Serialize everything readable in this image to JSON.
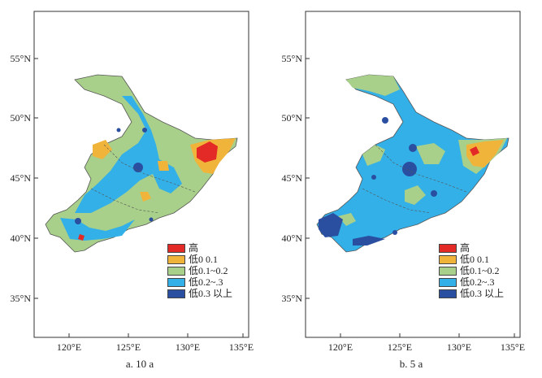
{
  "lat_labels": [
    "55°N",
    "50°N",
    "45°N",
    "40°N",
    "35°N"
  ],
  "lon_labels": [
    "120°E",
    "125°E",
    "130°E",
    "135°E"
  ],
  "legend": [
    {
      "label": "高",
      "color": "#e32a26"
    },
    {
      "label": "低0  0.1",
      "color": "#f0b43a"
    },
    {
      "label": "低0.1~0.2",
      "color": "#a8d08a"
    },
    {
      "label": "低0.2~.3",
      "color": "#33b0e8"
    },
    {
      "label": "低0.3 以上",
      "color": "#2a4fa0"
    }
  ],
  "panels": [
    {
      "caption": "a.  10 a"
    },
    {
      "caption": "b.  5 a"
    }
  ]
}
